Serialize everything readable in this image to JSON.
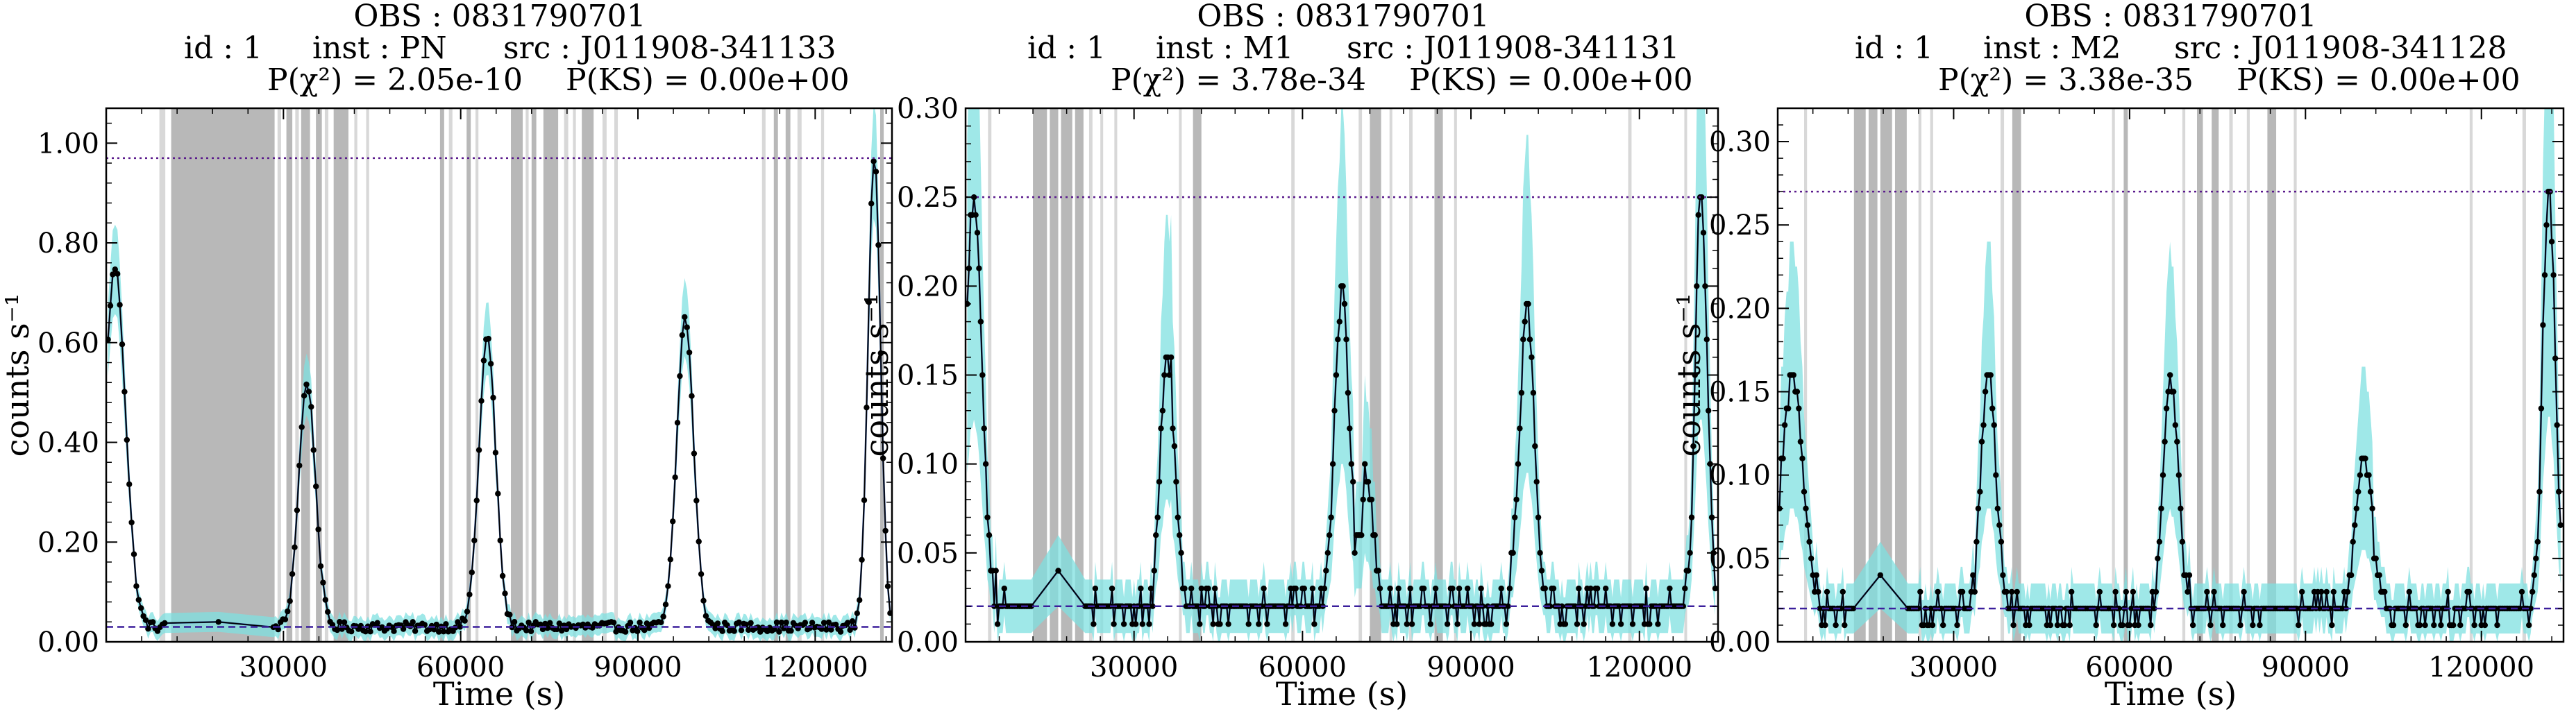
{
  "figure": {
    "colors": {
      "data": "#000000",
      "model": "#1f3a7a",
      "error_band": "#7fe0e0",
      "gti_shade": "#b8b8b8",
      "gti_line": "#d8d8d8",
      "max_line": "#5a1a8c",
      "mean_line": "#3b1f9c"
    }
  },
  "chart_data": [
    {
      "type": "line",
      "title_lines": [
        "OBS : 0831790701",
        "id : 1      inst : PN      src : J011908-341133",
        "P(χ²) = 2.05e-10      P(KS) = 0.00e+00"
      ],
      "obs": "OBS : 0831790701",
      "id": "id : 1",
      "inst": "inst : PN",
      "src": "src : J011908-341133",
      "p_chi2": "P(χ²) = 2.05e-10",
      "p_ks": "P(KS) = 0.00e+00",
      "xlabel": "Time (s)",
      "ylabel": "counts s⁻¹",
      "xlim": [
        0,
        133000
      ],
      "ylim": [
        0,
        1.07
      ],
      "xticks": [
        30000,
        60000,
        90000,
        120000
      ],
      "xtick_labels": [
        "30000",
        "60000",
        "90000",
        "120000"
      ],
      "yticks": [
        0,
        0.2,
        0.4,
        0.6,
        0.8,
        1.0
      ],
      "ytick_labels": [
        "0.00",
        "0.20",
        "0.40",
        "0.60",
        "0.80",
        "1.00"
      ],
      "max_rate": 0.97,
      "mean_rate": 0.03,
      "flares": [
        [
          1500,
          0.75,
          2500
        ],
        [
          34000,
          0.52,
          2000
        ],
        [
          64500,
          0.61,
          2000
        ],
        [
          98000,
          0.65,
          2000
        ],
        [
          130000,
          0.97,
          1500
        ]
      ],
      "baseline": 0.03,
      "gap": [
        10000,
        28000
      ],
      "gaps_shaded": [
        [
          11000,
          28500
        ],
        [
          30500,
          31500
        ],
        [
          33000,
          34500
        ],
        [
          35500,
          36500
        ],
        [
          38500,
          41000
        ],
        [
          56500,
          57200
        ],
        [
          61000,
          61700
        ],
        [
          68500,
          70500
        ],
        [
          72000,
          72800
        ],
        [
          74000,
          76500
        ],
        [
          80500,
          82500
        ],
        [
          113000,
          113700
        ],
        [
          115000,
          115800
        ],
        [
          131000,
          131600
        ]
      ],
      "gaps_light": [
        [
          9000,
          10000
        ],
        [
          29000,
          29600
        ],
        [
          32000,
          32600
        ],
        [
          37000,
          37600
        ],
        [
          42000,
          42500
        ],
        [
          44000,
          44500
        ],
        [
          58000,
          58600
        ],
        [
          62500,
          63000
        ],
        [
          71000,
          71500
        ],
        [
          77500,
          78200
        ],
        [
          79000,
          79500
        ],
        [
          84000,
          84700
        ],
        [
          86000,
          86600
        ],
        [
          111000,
          111600
        ],
        [
          117000,
          117700
        ],
        [
          121000,
          121500
        ]
      ]
    },
    {
      "type": "line",
      "obs": "OBS : 0831790701",
      "id": "id : 1",
      "inst": "inst : M1",
      "src": "src : J011908-341131",
      "p_chi2": "P(χ²) = 3.78e-34",
      "p_ks": "P(KS) = 0.00e+00",
      "xlabel": "Time (s)",
      "ylabel": "counts s⁻¹",
      "xlim": [
        0,
        134000
      ],
      "ylim": [
        0,
        0.3
      ],
      "xticks": [
        30000,
        60000,
        90000,
        120000
      ],
      "xtick_labels": [
        "30000",
        "60000",
        "90000",
        "120000"
      ],
      "yticks": [
        0,
        0.05,
        0.1,
        0.15,
        0.2,
        0.25,
        0.3
      ],
      "ytick_labels": [
        "0.00",
        "0.05",
        "0.10",
        "0.15",
        "0.20",
        "0.25",
        "0.30"
      ],
      "max_rate": 0.25,
      "mean_rate": 0.02,
      "flares": [
        [
          1500,
          0.25,
          2000
        ],
        [
          36000,
          0.16,
          1800
        ],
        [
          67000,
          0.2,
          1800
        ],
        [
          71500,
          0.09,
          1500
        ],
        [
          100000,
          0.19,
          1800
        ],
        [
          131000,
          0.25,
          1500
        ]
      ],
      "baseline": 0.02,
      "gap": [
        12000,
        21000
      ],
      "gaps_shaded": [
        [
          12000,
          14500
        ],
        [
          15000,
          16500
        ],
        [
          17000,
          19000
        ],
        [
          19500,
          21000
        ],
        [
          40500,
          42000
        ],
        [
          72000,
          74000
        ],
        [
          83500,
          85000
        ]
      ],
      "gaps_light": [
        [
          4000,
          4600
        ],
        [
          22000,
          22600
        ],
        [
          24000,
          24500
        ],
        [
          26500,
          27000
        ],
        [
          38000,
          38500
        ],
        [
          58000,
          58600
        ],
        [
          70000,
          70600
        ],
        [
          75500,
          76000
        ],
        [
          79000,
          79600
        ],
        [
          87000,
          87500
        ],
        [
          118000,
          118600
        ],
        [
          128000,
          128500
        ]
      ]
    },
    {
      "type": "line",
      "obs": "OBS : 0831790701",
      "id": "id : 1",
      "inst": "inst : M2",
      "src": "src : J011908-341128",
      "p_chi2": "P(χ²) = 3.38e-35",
      "p_ks": "P(KS) = 0.00e+00",
      "xlabel": "Time (s)",
      "ylabel": "counts s⁻¹",
      "xlim": [
        0,
        134000
      ],
      "ylim": [
        0,
        0.32
      ],
      "xticks": [
        30000,
        60000,
        90000,
        120000
      ],
      "xtick_labels": [
        "30000",
        "60000",
        "90000",
        "120000"
      ],
      "yticks": [
        0,
        0.05,
        0.1,
        0.15,
        0.2,
        0.25,
        0.3
      ],
      "ytick_labels": [
        "0.00",
        "0.05",
        "0.10",
        "0.15",
        "0.20",
        "0.25",
        "0.30"
      ],
      "max_rate": 0.27,
      "mean_rate": 0.02,
      "flares": [
        [
          2500,
          0.16,
          2500
        ],
        [
          36000,
          0.16,
          1800
        ],
        [
          67000,
          0.16,
          1800
        ],
        [
          100000,
          0.11,
          2000
        ],
        [
          131500,
          0.27,
          1500
        ]
      ],
      "baseline": 0.02,
      "gap": [
        13000,
        22000
      ],
      "gaps_shaded": [
        [
          13000,
          15000
        ],
        [
          15500,
          17000
        ],
        [
          17500,
          19500
        ],
        [
          20000,
          22000
        ],
        [
          40000,
          41500
        ],
        [
          59000,
          59700
        ],
        [
          71500,
          72500
        ],
        [
          74000,
          75200
        ],
        [
          83500,
          85000
        ]
      ],
      "gaps_light": [
        [
          4500,
          5000
        ],
        [
          24000,
          24500
        ],
        [
          26000,
          26500
        ],
        [
          38000,
          38600
        ],
        [
          57000,
          57500
        ],
        [
          69000,
          69500
        ],
        [
          77000,
          77600
        ],
        [
          80000,
          80500
        ],
        [
          88000,
          88500
        ],
        [
          118000,
          118500
        ],
        [
          127000,
          127600
        ]
      ]
    }
  ]
}
